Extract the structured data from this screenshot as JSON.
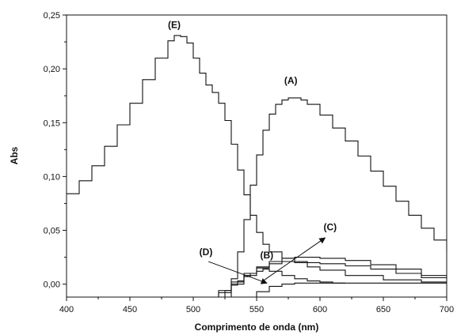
{
  "chart_data": {
    "type": "line",
    "xlabel": "Comprimento de onda (nm)",
    "ylabel": "Abs",
    "xlim": [
      400,
      700
    ],
    "ylim": [
      -0.012,
      0.25
    ],
    "x_ticks": [
      400,
      450,
      500,
      550,
      600,
      650,
      700
    ],
    "x_tick_labels": [
      "400",
      "450",
      "500",
      "550",
      "600",
      "650",
      "700"
    ],
    "y_ticks": [
      0.0,
      0.05,
      0.1,
      0.15,
      0.2,
      0.25
    ],
    "y_tick_labels": [
      "0,00",
      "0,05",
      "0,10",
      "0,15",
      "0,20",
      "0,25"
    ],
    "grid": false,
    "series": [
      {
        "name": "(E)",
        "x": [
          400,
          410,
          420,
          430,
          440,
          450,
          460,
          470,
          480,
          485,
          490,
          495,
          500,
          505,
          510,
          515,
          520,
          525,
          530,
          535,
          540,
          545,
          550,
          555,
          560,
          570,
          580,
          590,
          600,
          620,
          650,
          680,
          700
        ],
        "y": [
          0.084,
          0.096,
          0.11,
          0.128,
          0.148,
          0.168,
          0.19,
          0.21,
          0.226,
          0.231,
          0.23,
          0.224,
          0.21,
          0.196,
          0.185,
          0.178,
          0.168,
          0.152,
          0.13,
          0.106,
          0.083,
          0.064,
          0.048,
          0.037,
          0.03,
          0.024,
          0.02,
          0.016,
          0.013,
          0.008,
          0.004,
          0.002,
          0.002
        ]
      },
      {
        "name": "(A)",
        "x": [
          527,
          530,
          535,
          540,
          545,
          550,
          555,
          560,
          565,
          570,
          575,
          580,
          585,
          590,
          600,
          610,
          620,
          630,
          640,
          650,
          660,
          670,
          680,
          690,
          700
        ],
        "y": [
          -0.012,
          0.005,
          0.03,
          0.06,
          0.092,
          0.12,
          0.143,
          0.158,
          0.167,
          0.171,
          0.173,
          0.173,
          0.171,
          0.167,
          0.157,
          0.145,
          0.133,
          0.119,
          0.105,
          0.091,
          0.077,
          0.064,
          0.052,
          0.041,
          0.031
        ]
      },
      {
        "name": "(B)",
        "x": [
          520,
          525,
          530,
          535,
          540,
          545,
          550,
          555,
          560,
          570,
          580,
          590,
          600,
          610,
          620
        ],
        "y": [
          -0.012,
          -0.006,
          -0.001,
          0.003,
          0.007,
          0.01,
          0.012,
          0.014,
          0.012,
          0.008,
          0.005,
          0.003,
          0.002,
          0.001,
          0.001
        ]
      },
      {
        "name": "(C)",
        "x": [
          515,
          520,
          530,
          540,
          550,
          560,
          570,
          580,
          590,
          600,
          620,
          640,
          660,
          680,
          700
        ],
        "y": [
          -0.012,
          -0.008,
          0.0,
          0.008,
          0.015,
          0.019,
          0.021,
          0.021,
          0.02,
          0.019,
          0.017,
          0.014,
          0.01,
          0.006,
          0.003
        ]
      },
      {
        "name": "(D)",
        "x": [
          513,
          520,
          530,
          540,
          550,
          560,
          570,
          580,
          590,
          600,
          620,
          640,
          660,
          680,
          700
        ],
        "y": [
          -0.012,
          -0.006,
          0.002,
          0.01,
          0.016,
          0.021,
          0.024,
          0.025,
          0.025,
          0.024,
          0.022,
          0.018,
          0.014,
          0.008,
          0.005
        ]
      },
      {
        "name": "",
        "x": [
          548,
          550,
          560,
          570,
          580,
          600,
          620,
          650,
          680,
          700
        ],
        "y": [
          -0.012,
          -0.007,
          -0.002,
          0.0,
          0.001,
          0.001,
          0.001,
          0.001,
          0.001,
          0.001
        ]
      }
    ],
    "annotations": [
      {
        "text": "(E)",
        "x": 485,
        "y": 0.238
      },
      {
        "text": "(A)",
        "x": 577,
        "y": 0.186
      },
      {
        "text": "(C)",
        "x": 608,
        "y": 0.05
      },
      {
        "text": "(B)",
        "x": 558,
        "y": 0.024
      },
      {
        "text": "(D)",
        "x": 510,
        "y": 0.027
      }
    ],
    "arrows": [
      {
        "from": [
          512,
          0.021
        ],
        "to": [
          558,
          0.001
        ]
      },
      {
        "from": [
          555,
          0.003
        ],
        "to": [
          604,
          0.043
        ]
      }
    ]
  }
}
